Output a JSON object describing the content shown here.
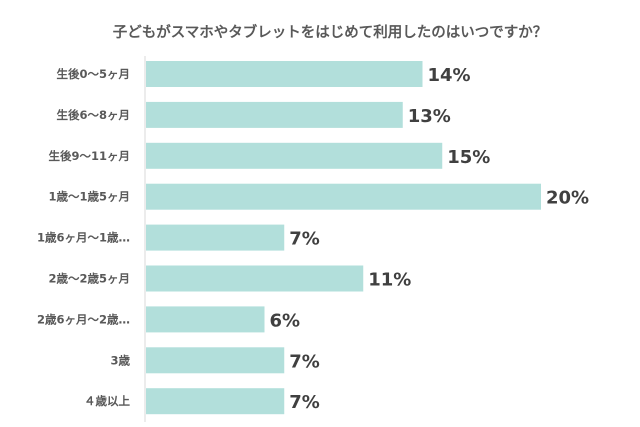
{
  "chart_data": {
    "type": "bar",
    "orientation": "horizontal",
    "title": "子どもがスマホやタブレットをはじめて利用したのはいつですか？",
    "categories": [
      "生後0～5ヶ月",
      "生後6～8ヶ月",
      "生後9～11ヶ月",
      "1歳～1歳5ヶ月",
      "1歳6ヶ月～1歳…",
      "2歳～2歳5ヶ月",
      "2歳6ヶ月～2歳…",
      "3歳",
      "４歳以上"
    ],
    "values": [
      14,
      13,
      15,
      20,
      7,
      11,
      6,
      7,
      7
    ],
    "data_labels": [
      "14%",
      "13%",
      "15%",
      "20%",
      "7%",
      "11%",
      "6%",
      "7%",
      "7%"
    ],
    "xlim": [
      0,
      20
    ],
    "grid": false,
    "legend": "none",
    "bar_color": "#b2dfdb"
  }
}
